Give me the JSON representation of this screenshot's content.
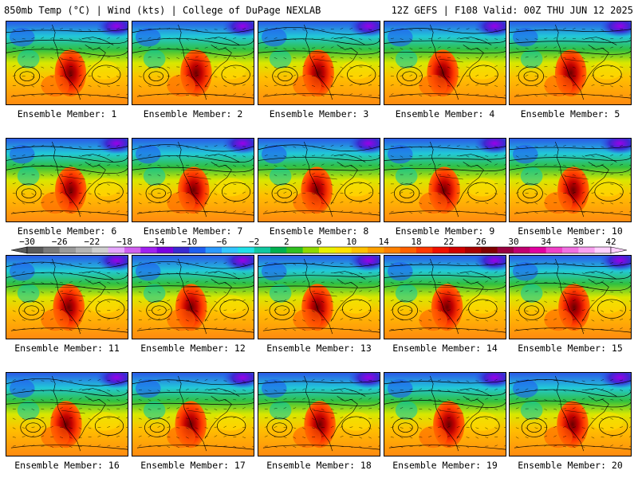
{
  "header": {
    "left": "850mb Temp (°C) | Wind (kts) | College of DuPage NEXLAB",
    "right": "12Z GEFS | F108 Valid: 00Z THU JUN 12 2025"
  },
  "member_caption_prefix": "Ensemble Member:",
  "members": [
    {
      "number": "1"
    },
    {
      "number": "2"
    },
    {
      "number": "3"
    },
    {
      "number": "4"
    },
    {
      "number": "5"
    },
    {
      "number": "6"
    },
    {
      "number": "7"
    },
    {
      "number": "8"
    },
    {
      "number": "9"
    },
    {
      "number": "10"
    },
    {
      "number": "11"
    },
    {
      "number": "12"
    },
    {
      "number": "13"
    },
    {
      "number": "14"
    },
    {
      "number": "15"
    },
    {
      "number": "16"
    },
    {
      "number": "17"
    },
    {
      "number": "18"
    },
    {
      "number": "19"
    },
    {
      "number": "20"
    }
  ],
  "colorbar": {
    "ticks": [
      "-30",
      "-26",
      "-22",
      "-18",
      "-14",
      "-10",
      "-6",
      "-2",
      "2",
      "6",
      "10",
      "14",
      "18",
      "22",
      "26",
      "30",
      "34",
      "38",
      "42"
    ],
    "colors": [
      "#5a5a5a",
      "#7a7a7a",
      "#9a9a9a",
      "#b4b4b4",
      "#cfcfcf",
      "#e6a8ff",
      "#d060f0",
      "#a020f0",
      "#7a00e0",
      "#3a2ad0",
      "#1f5ef0",
      "#2a9aff",
      "#33c6ff",
      "#20e0e8",
      "#10c8a0",
      "#00b050",
      "#30c020",
      "#90d800",
      "#e8f000",
      "#ffe000",
      "#ffc000",
      "#ffa000",
      "#ff8000",
      "#ff6000",
      "#ff3800",
      "#f01000",
      "#d00000",
      "#a80000",
      "#800000",
      "#980040",
      "#c00070",
      "#e000a0",
      "#f040c8",
      "#f070e0",
      "#f8a0f0",
      "#ffd0ff"
    ]
  }
}
